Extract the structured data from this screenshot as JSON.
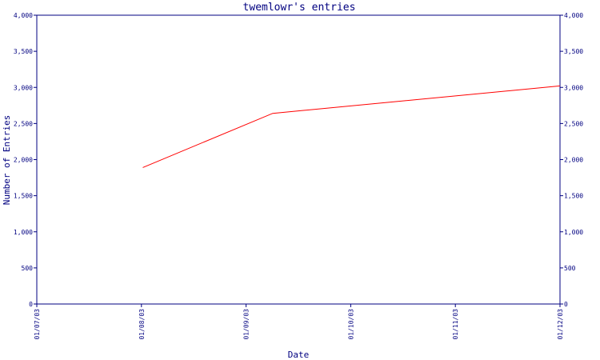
{
  "chart_data": {
    "type": "line",
    "title": "twemlowr's entries",
    "xlabel": "Date",
    "ylabel": "Number of Entries",
    "x_tick_labels": [
      "01/07/03",
      "01/08/03",
      "01/09/03",
      "01/10/03",
      "01/11/03",
      "01/12/03"
    ],
    "y_tick_labels": [
      "0",
      "500",
      "1,000",
      "1,500",
      "2,000",
      "2,500",
      "3,000",
      "3,500",
      "4,000"
    ],
    "y_ticks": [
      0,
      500,
      1000,
      1500,
      2000,
      2500,
      3000,
      3500,
      4000
    ],
    "ylim": [
      0,
      4000
    ],
    "xlim": [
      "2003-07-01",
      "2003-12-01"
    ],
    "grid": false,
    "colors": {
      "axis": "#000080",
      "line": "#ff0000",
      "background": "#ffffff"
    },
    "series": [
      {
        "x": [
          "2003-08-01",
          "2003-09-08",
          "2003-12-01"
        ],
        "y": [
          1890,
          2640,
          3020
        ]
      }
    ]
  }
}
